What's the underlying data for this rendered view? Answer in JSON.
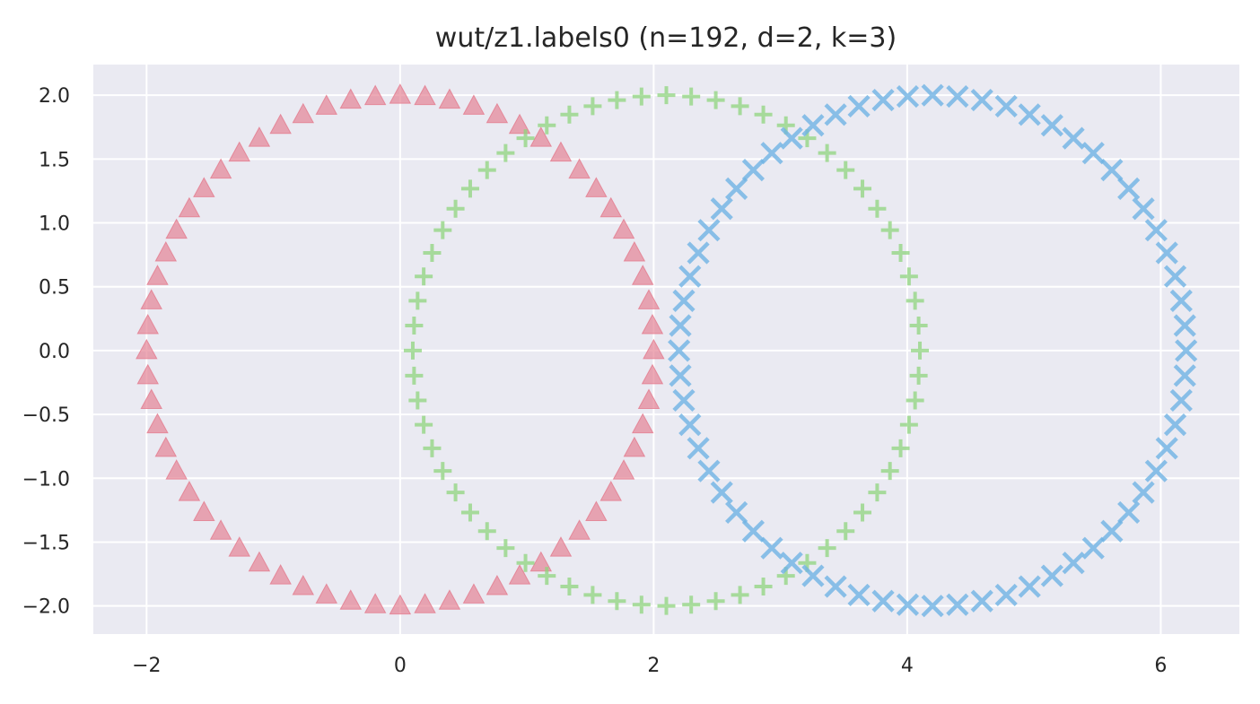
{
  "chart_data": {
    "type": "scatter",
    "title": "wut/z1.labels0 (n=192, d=2, k=3)",
    "xlabel": "",
    "ylabel": "",
    "xlim": [
      -2.42,
      6.62
    ],
    "ylim": [
      -2.22,
      2.24
    ],
    "x_ticks": [
      -2,
      0,
      2,
      4,
      6
    ],
    "x_tick_labels": [
      "−2",
      "0",
      "2",
      "4",
      "6"
    ],
    "y_ticks": [
      2.0,
      1.5,
      1.0,
      0.5,
      0.0,
      -0.5,
      -1.0,
      -1.5,
      -2.0
    ],
    "y_tick_labels": [
      "2.0",
      "1.5",
      "1.0",
      "0.5",
      "0.0",
      "−0.5",
      "−1.0",
      "−1.5",
      "−2.0"
    ],
    "grid": true,
    "background": "#eaeaf2",
    "series": [
      {
        "marker": "triangle",
        "color": "#e37b8d",
        "points": [
          [
            0.0,
            2.0
          ],
          [
            0.196,
            1.99
          ],
          [
            0.39,
            1.962
          ],
          [
            0.581,
            1.914
          ],
          [
            0.765,
            1.848
          ],
          [
            0.943,
            1.764
          ],
          [
            1.111,
            1.663
          ],
          [
            1.268,
            1.547
          ],
          [
            1.414,
            1.414
          ],
          [
            1.547,
            1.268
          ],
          [
            1.663,
            1.111
          ],
          [
            1.764,
            0.943
          ],
          [
            1.848,
            0.765
          ],
          [
            1.914,
            0.581
          ],
          [
            1.962,
            0.39
          ],
          [
            1.99,
            0.196
          ],
          [
            2.0,
            0.0
          ],
          [
            1.99,
            -0.196
          ],
          [
            1.962,
            -0.39
          ],
          [
            1.914,
            -0.581
          ],
          [
            1.848,
            -0.765
          ],
          [
            1.764,
            -0.943
          ],
          [
            1.663,
            -1.111
          ],
          [
            1.547,
            -1.268
          ],
          [
            1.414,
            -1.414
          ],
          [
            1.268,
            -1.547
          ],
          [
            1.111,
            -1.663
          ],
          [
            0.943,
            -1.764
          ],
          [
            0.765,
            -1.848
          ],
          [
            0.581,
            -1.914
          ],
          [
            0.39,
            -1.962
          ],
          [
            0.196,
            -1.99
          ],
          [
            0.0,
            -2.0
          ],
          [
            -0.196,
            -1.99
          ],
          [
            -0.39,
            -1.962
          ],
          [
            -0.581,
            -1.914
          ],
          [
            -0.765,
            -1.848
          ],
          [
            -0.943,
            -1.764
          ],
          [
            -1.111,
            -1.663
          ],
          [
            -1.268,
            -1.547
          ],
          [
            -1.414,
            -1.414
          ],
          [
            -1.547,
            -1.268
          ],
          [
            -1.663,
            -1.111
          ],
          [
            -1.764,
            -0.943
          ],
          [
            -1.848,
            -0.765
          ],
          [
            -1.914,
            -0.581
          ],
          [
            -1.962,
            -0.39
          ],
          [
            -1.99,
            -0.196
          ],
          [
            -2.0,
            0.0
          ],
          [
            -1.99,
            0.196
          ],
          [
            -1.962,
            0.39
          ],
          [
            -1.914,
            0.581
          ],
          [
            -1.848,
            0.765
          ],
          [
            -1.764,
            0.943
          ],
          [
            -1.663,
            1.111
          ],
          [
            -1.547,
            1.268
          ],
          [
            -1.414,
            1.414
          ],
          [
            -1.268,
            1.547
          ],
          [
            -1.111,
            1.663
          ],
          [
            -0.943,
            1.764
          ],
          [
            -0.765,
            1.848
          ],
          [
            -0.581,
            1.914
          ],
          [
            -0.39,
            1.962
          ],
          [
            -0.196,
            1.99
          ]
        ]
      },
      {
        "marker": "plus",
        "color": "#8fd47e",
        "points": [
          [
            2.1,
            2.0
          ],
          [
            2.296,
            1.99
          ],
          [
            2.49,
            1.962
          ],
          [
            2.681,
            1.914
          ],
          [
            2.865,
            1.848
          ],
          [
            3.043,
            1.764
          ],
          [
            3.211,
            1.663
          ],
          [
            3.368,
            1.547
          ],
          [
            3.514,
            1.414
          ],
          [
            3.647,
            1.268
          ],
          [
            3.763,
            1.111
          ],
          [
            3.864,
            0.943
          ],
          [
            3.948,
            0.765
          ],
          [
            4.014,
            0.581
          ],
          [
            4.062,
            0.39
          ],
          [
            4.09,
            0.196
          ],
          [
            4.1,
            0.0
          ],
          [
            4.09,
            -0.196
          ],
          [
            4.062,
            -0.39
          ],
          [
            4.014,
            -0.581
          ],
          [
            3.948,
            -0.765
          ],
          [
            3.864,
            -0.943
          ],
          [
            3.763,
            -1.111
          ],
          [
            3.647,
            -1.268
          ],
          [
            3.514,
            -1.414
          ],
          [
            3.368,
            -1.547
          ],
          [
            3.211,
            -1.663
          ],
          [
            3.043,
            -1.764
          ],
          [
            2.865,
            -1.848
          ],
          [
            2.681,
            -1.914
          ],
          [
            2.49,
            -1.962
          ],
          [
            2.296,
            -1.99
          ],
          [
            2.1,
            -2.0
          ],
          [
            1.904,
            -1.99
          ],
          [
            1.71,
            -1.962
          ],
          [
            1.519,
            -1.914
          ],
          [
            1.335,
            -1.848
          ],
          [
            1.157,
            -1.764
          ],
          [
            0.989,
            -1.663
          ],
          [
            0.832,
            -1.547
          ],
          [
            0.686,
            -1.414
          ],
          [
            0.553,
            -1.268
          ],
          [
            0.437,
            -1.111
          ],
          [
            0.336,
            -0.943
          ],
          [
            0.252,
            -0.765
          ],
          [
            0.186,
            -0.581
          ],
          [
            0.138,
            -0.39
          ],
          [
            0.11,
            -0.196
          ],
          [
            0.1,
            0.0
          ],
          [
            0.11,
            0.196
          ],
          [
            0.138,
            0.39
          ],
          [
            0.186,
            0.581
          ],
          [
            0.252,
            0.765
          ],
          [
            0.336,
            0.943
          ],
          [
            0.437,
            1.111
          ],
          [
            0.553,
            1.268
          ],
          [
            0.686,
            1.414
          ],
          [
            0.832,
            1.547
          ],
          [
            0.989,
            1.663
          ],
          [
            1.157,
            1.764
          ],
          [
            1.335,
            1.848
          ],
          [
            1.519,
            1.914
          ],
          [
            1.71,
            1.962
          ],
          [
            1.904,
            1.99
          ]
        ]
      },
      {
        "marker": "x",
        "color": "#6fb3e3",
        "points": [
          [
            4.2,
            2.0
          ],
          [
            4.396,
            1.99
          ],
          [
            4.59,
            1.962
          ],
          [
            4.781,
            1.914
          ],
          [
            4.965,
            1.848
          ],
          [
            5.143,
            1.764
          ],
          [
            5.311,
            1.663
          ],
          [
            5.468,
            1.547
          ],
          [
            5.614,
            1.414
          ],
          [
            5.747,
            1.268
          ],
          [
            5.863,
            1.111
          ],
          [
            5.964,
            0.943
          ],
          [
            6.048,
            0.765
          ],
          [
            6.114,
            0.581
          ],
          [
            6.162,
            0.39
          ],
          [
            6.19,
            0.196
          ],
          [
            6.2,
            0.0
          ],
          [
            6.19,
            -0.196
          ],
          [
            6.162,
            -0.39
          ],
          [
            6.114,
            -0.581
          ],
          [
            6.048,
            -0.765
          ],
          [
            5.964,
            -0.943
          ],
          [
            5.863,
            -1.111
          ],
          [
            5.747,
            -1.268
          ],
          [
            5.614,
            -1.414
          ],
          [
            5.468,
            -1.547
          ],
          [
            5.311,
            -1.663
          ],
          [
            5.143,
            -1.764
          ],
          [
            4.965,
            -1.848
          ],
          [
            4.781,
            -1.914
          ],
          [
            4.59,
            -1.962
          ],
          [
            4.396,
            -1.99
          ],
          [
            4.2,
            -2.0
          ],
          [
            4.004,
            -1.99
          ],
          [
            3.81,
            -1.962
          ],
          [
            3.619,
            -1.914
          ],
          [
            3.435,
            -1.848
          ],
          [
            3.257,
            -1.764
          ],
          [
            3.089,
            -1.663
          ],
          [
            2.932,
            -1.547
          ],
          [
            2.786,
            -1.414
          ],
          [
            2.653,
            -1.268
          ],
          [
            2.537,
            -1.111
          ],
          [
            2.436,
            -0.943
          ],
          [
            2.352,
            -0.765
          ],
          [
            2.286,
            -0.581
          ],
          [
            2.238,
            -0.39
          ],
          [
            2.21,
            -0.196
          ],
          [
            2.2,
            0.0
          ],
          [
            2.21,
            0.196
          ],
          [
            2.238,
            0.39
          ],
          [
            2.286,
            0.581
          ],
          [
            2.352,
            0.765
          ],
          [
            2.436,
            0.943
          ],
          [
            2.537,
            1.111
          ],
          [
            2.653,
            1.268
          ],
          [
            2.786,
            1.414
          ],
          [
            2.932,
            1.547
          ],
          [
            3.089,
            1.663
          ],
          [
            3.257,
            1.764
          ],
          [
            3.435,
            1.848
          ],
          [
            3.619,
            1.914
          ],
          [
            3.81,
            1.962
          ],
          [
            4.004,
            1.99
          ]
        ]
      }
    ]
  }
}
